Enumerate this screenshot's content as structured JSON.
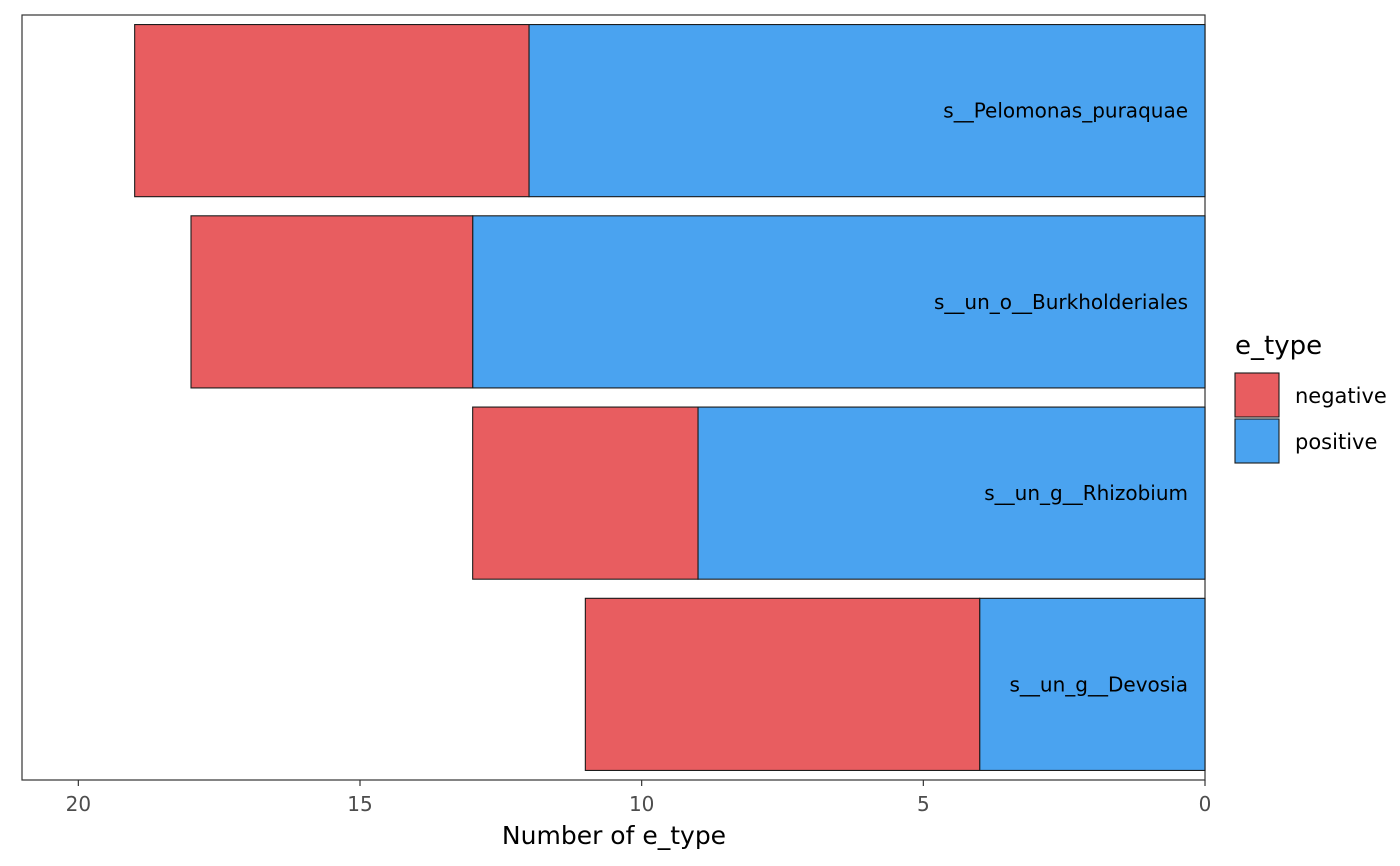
{
  "chart_data": {
    "type": "bar",
    "orientation": "horizontal",
    "stacked": true,
    "x_reversed": true,
    "categories": [
      "s__Pelomonas_puraquae",
      "s__un_o__Burkholderiales",
      "s__un_g__Rhizobium",
      "s__un_g__Devosia"
    ],
    "series": [
      {
        "name": "positive",
        "values": [
          12,
          13,
          9,
          4
        ],
        "color": "#4AA3F0"
      },
      {
        "name": "negative",
        "values": [
          7,
          5,
          4,
          7
        ],
        "color": "#E85D60"
      }
    ],
    "xlabel": "Number of e_type",
    "ylabel": "",
    "xlim": [
      0,
      21
    ],
    "xticks": [
      0,
      5,
      10,
      15,
      20
    ],
    "grid": false,
    "legend": {
      "title": "e_type",
      "position": "right",
      "entries": [
        "negative",
        "positive"
      ]
    }
  }
}
